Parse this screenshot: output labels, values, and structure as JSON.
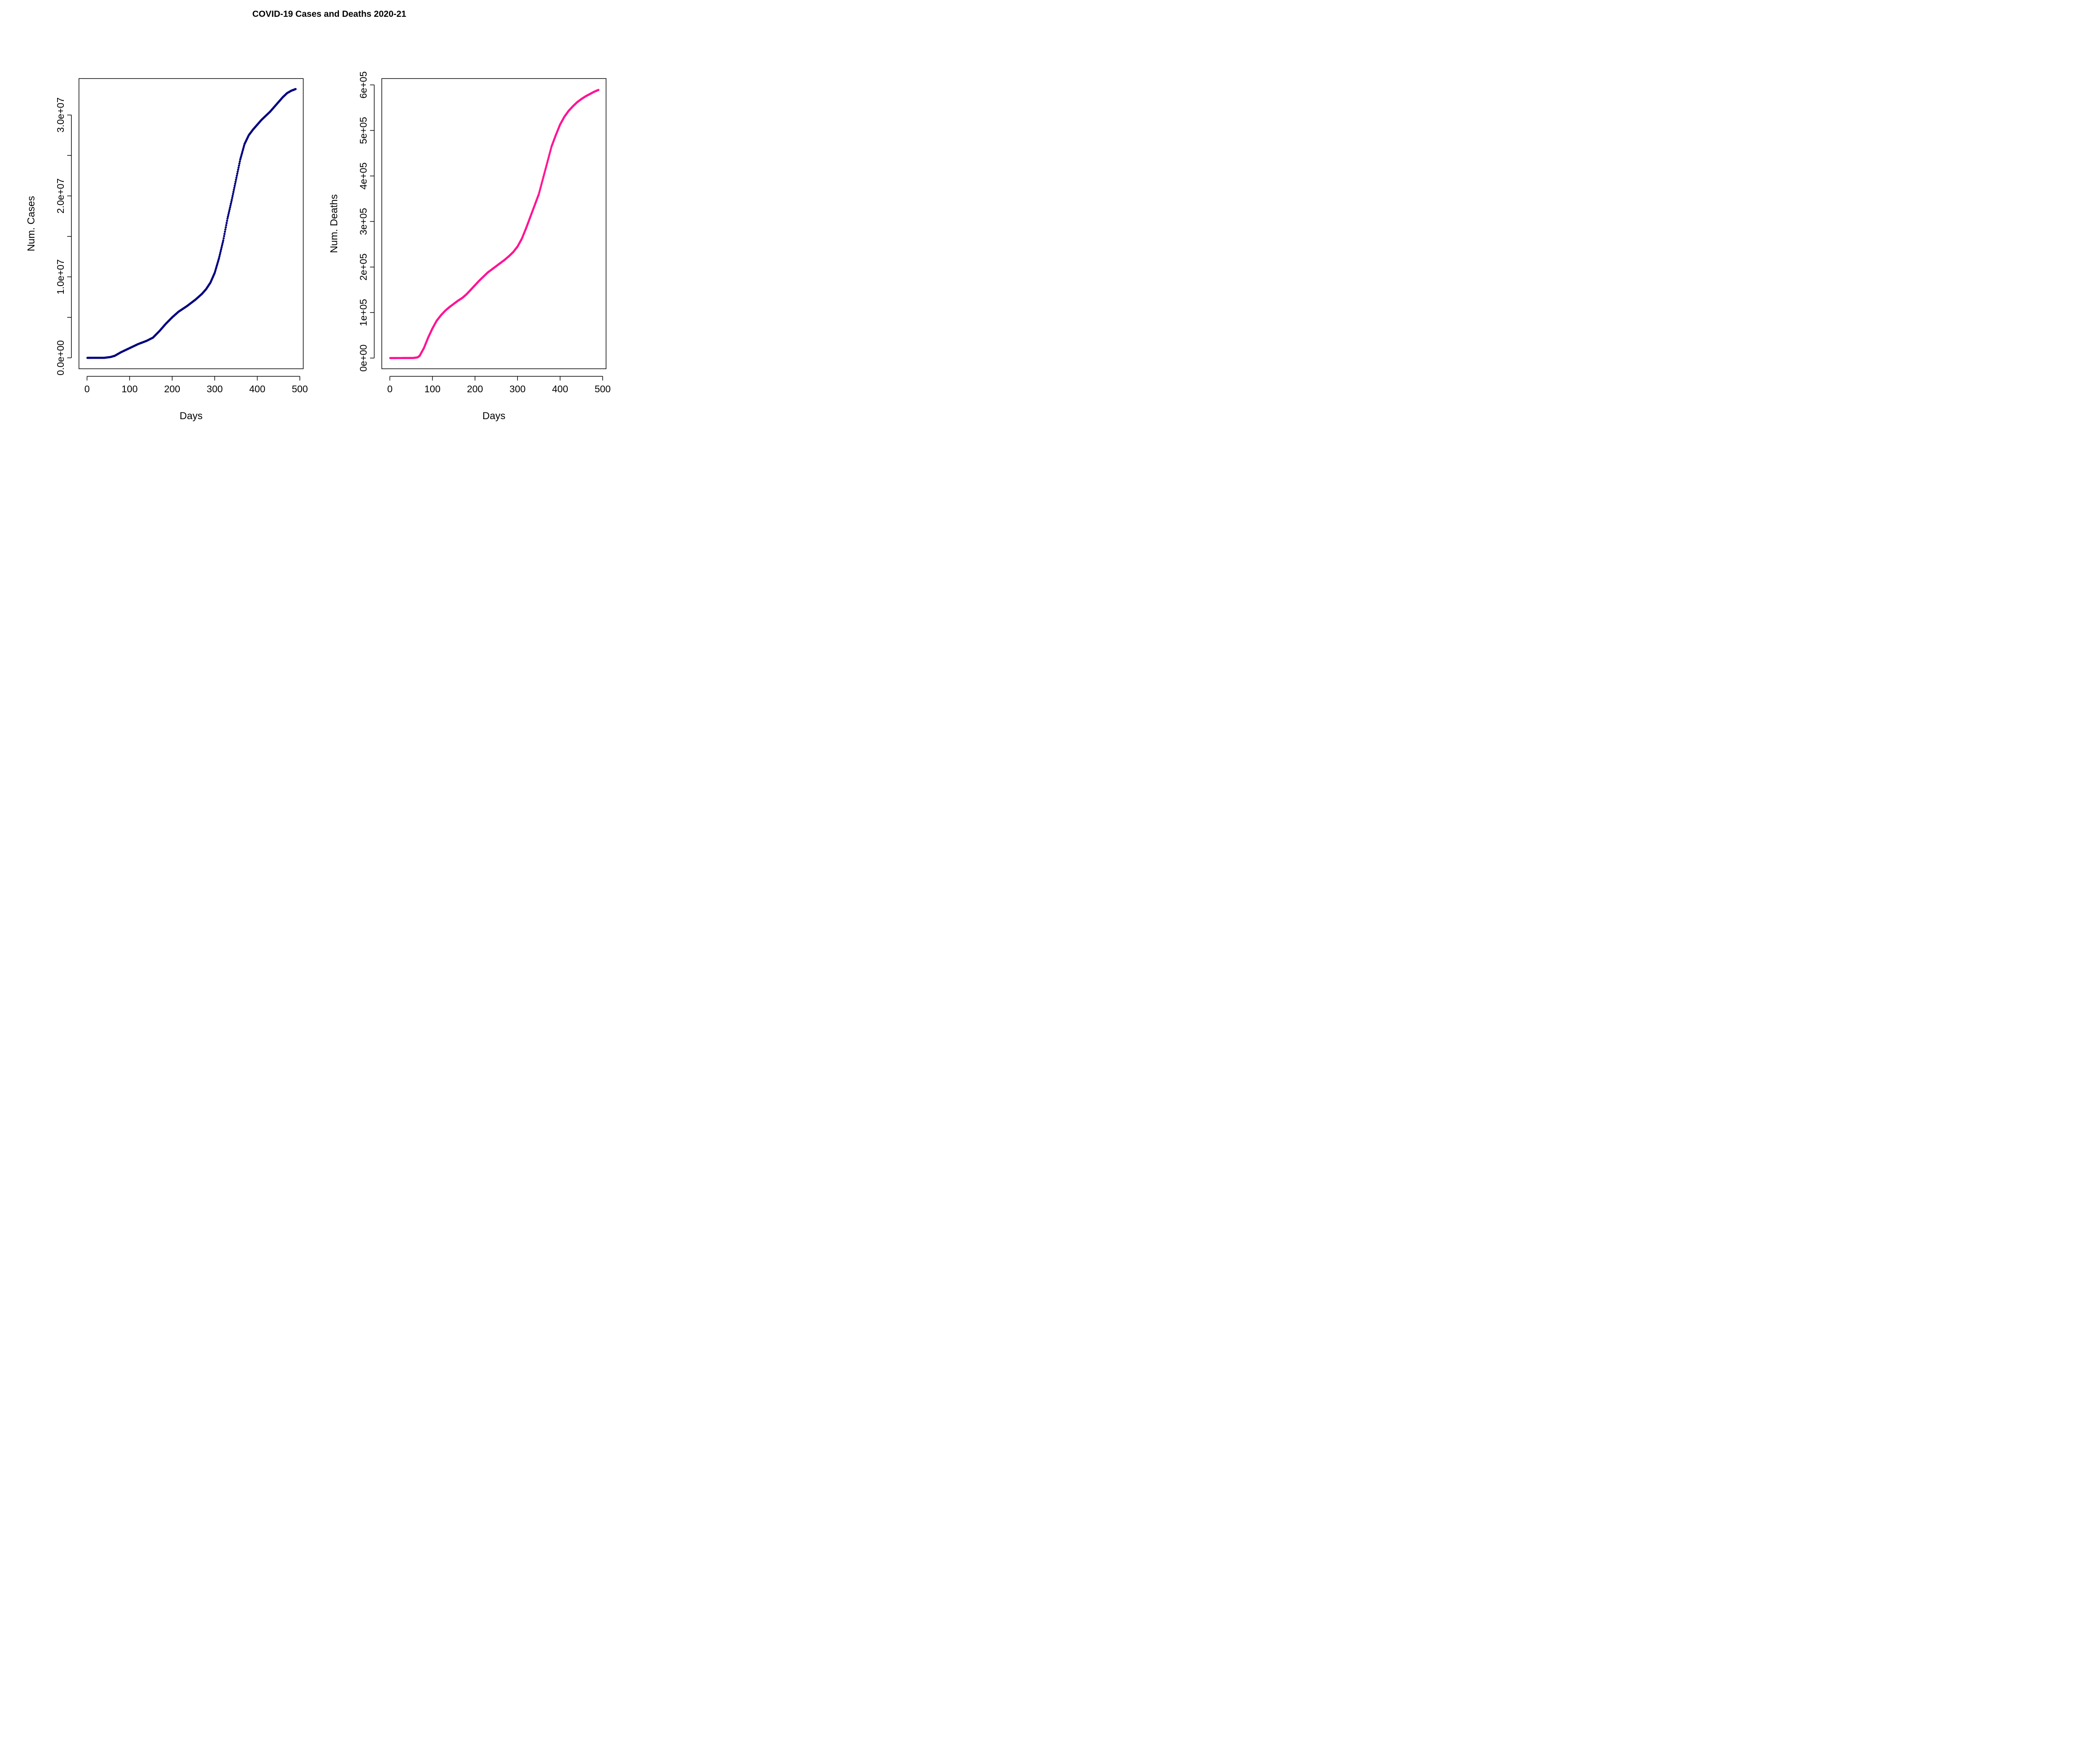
{
  "figure": {
    "title": "COVID-19 Cases and Deaths 2020-21"
  },
  "chart_data": [
    {
      "type": "scatter",
      "xlabel": "Days",
      "ylabel": "Num. Cases",
      "xlim": [
        -19,
        508
      ],
      "ylim": [
        -1350000,
        34500000
      ],
      "x_ticks": [
        {
          "value": 0,
          "label": "0"
        },
        {
          "value": 100,
          "label": "100"
        },
        {
          "value": 200,
          "label": "200"
        },
        {
          "value": 300,
          "label": "300"
        },
        {
          "value": 400,
          "label": "400"
        },
        {
          "value": 500,
          "label": "500"
        }
      ],
      "y_ticks": [
        {
          "value": 0,
          "label": "0.0e+00"
        },
        {
          "value": 5000000,
          "label": ""
        },
        {
          "value": 10000000,
          "label": "1.0e+07"
        },
        {
          "value": 15000000,
          "label": ""
        },
        {
          "value": 20000000,
          "label": "2.0e+07"
        },
        {
          "value": 25000000,
          "label": ""
        },
        {
          "value": 30000000,
          "label": "3.0e+07"
        }
      ],
      "series_color": "#000080",
      "keypoints": [
        [
          1,
          0
        ],
        [
          40,
          3000
        ],
        [
          55,
          100000
        ],
        [
          65,
          250000
        ],
        [
          80,
          700000
        ],
        [
          100,
          1200000
        ],
        [
          120,
          1700000
        ],
        [
          140,
          2100000
        ],
        [
          155,
          2500000
        ],
        [
          170,
          3300000
        ],
        [
          185,
          4200000
        ],
        [
          200,
          5000000
        ],
        [
          215,
          5700000
        ],
        [
          235,
          6400000
        ],
        [
          255,
          7200000
        ],
        [
          270,
          7900000
        ],
        [
          280,
          8500000
        ],
        [
          290,
          9300000
        ],
        [
          300,
          10500000
        ],
        [
          310,
          12300000
        ],
        [
          320,
          14500000
        ],
        [
          330,
          17200000
        ],
        [
          340,
          19500000
        ],
        [
          350,
          22000000
        ],
        [
          360,
          24500000
        ],
        [
          370,
          26400000
        ],
        [
          380,
          27500000
        ],
        [
          390,
          28200000
        ],
        [
          400,
          28800000
        ],
        [
          410,
          29400000
        ],
        [
          420,
          29900000
        ],
        [
          430,
          30400000
        ],
        [
          440,
          31000000
        ],
        [
          450,
          31600000
        ],
        [
          460,
          32200000
        ],
        [
          470,
          32700000
        ],
        [
          480,
          33000000
        ],
        [
          490,
          33200000
        ]
      ]
    },
    {
      "type": "scatter",
      "xlabel": "Days",
      "ylabel": "Num. Deaths",
      "xlim": [
        -19,
        508
      ],
      "ylim": [
        -23500,
        614000
      ],
      "x_ticks": [
        {
          "value": 0,
          "label": "0"
        },
        {
          "value": 100,
          "label": "100"
        },
        {
          "value": 200,
          "label": "200"
        },
        {
          "value": 300,
          "label": "300"
        },
        {
          "value": 400,
          "label": "400"
        },
        {
          "value": 500,
          "label": "500"
        }
      ],
      "y_ticks": [
        {
          "value": 0,
          "label": "0e+00"
        },
        {
          "value": 100000,
          "label": "1e+05"
        },
        {
          "value": 200000,
          "label": "2e+05"
        },
        {
          "value": 300000,
          "label": "3e+05"
        },
        {
          "value": 400000,
          "label": "4e+05"
        },
        {
          "value": 500000,
          "label": "5e+05"
        },
        {
          "value": 600000,
          "label": "6e+05"
        }
      ],
      "series_color": "#ff1493",
      "keypoints": [
        [
          1,
          0
        ],
        [
          55,
          200
        ],
        [
          65,
          1500
        ],
        [
          70,
          5000
        ],
        [
          80,
          22000
        ],
        [
          90,
          45000
        ],
        [
          100,
          65000
        ],
        [
          110,
          82000
        ],
        [
          120,
          94000
        ],
        [
          130,
          104000
        ],
        [
          140,
          112000
        ],
        [
          150,
          119000
        ],
        [
          160,
          126000
        ],
        [
          170,
          132000
        ],
        [
          180,
          140000
        ],
        [
          190,
          150000
        ],
        [
          200,
          160000
        ],
        [
          210,
          170000
        ],
        [
          220,
          179000
        ],
        [
          230,
          188000
        ],
        [
          240,
          195000
        ],
        [
          250,
          202000
        ],
        [
          260,
          209000
        ],
        [
          270,
          216000
        ],
        [
          280,
          224000
        ],
        [
          290,
          233000
        ],
        [
          300,
          245000
        ],
        [
          310,
          262000
        ],
        [
          320,
          285000
        ],
        [
          330,
          310000
        ],
        [
          340,
          335000
        ],
        [
          350,
          360000
        ],
        [
          360,
          395000
        ],
        [
          370,
          430000
        ],
        [
          380,
          465000
        ],
        [
          390,
          490000
        ],
        [
          400,
          513000
        ],
        [
          410,
          530000
        ],
        [
          420,
          543000
        ],
        [
          430,
          553000
        ],
        [
          440,
          562000
        ],
        [
          450,
          569000
        ],
        [
          460,
          575000
        ],
        [
          470,
          580000
        ],
        [
          480,
          585000
        ],
        [
          490,
          589000
        ]
      ]
    }
  ]
}
